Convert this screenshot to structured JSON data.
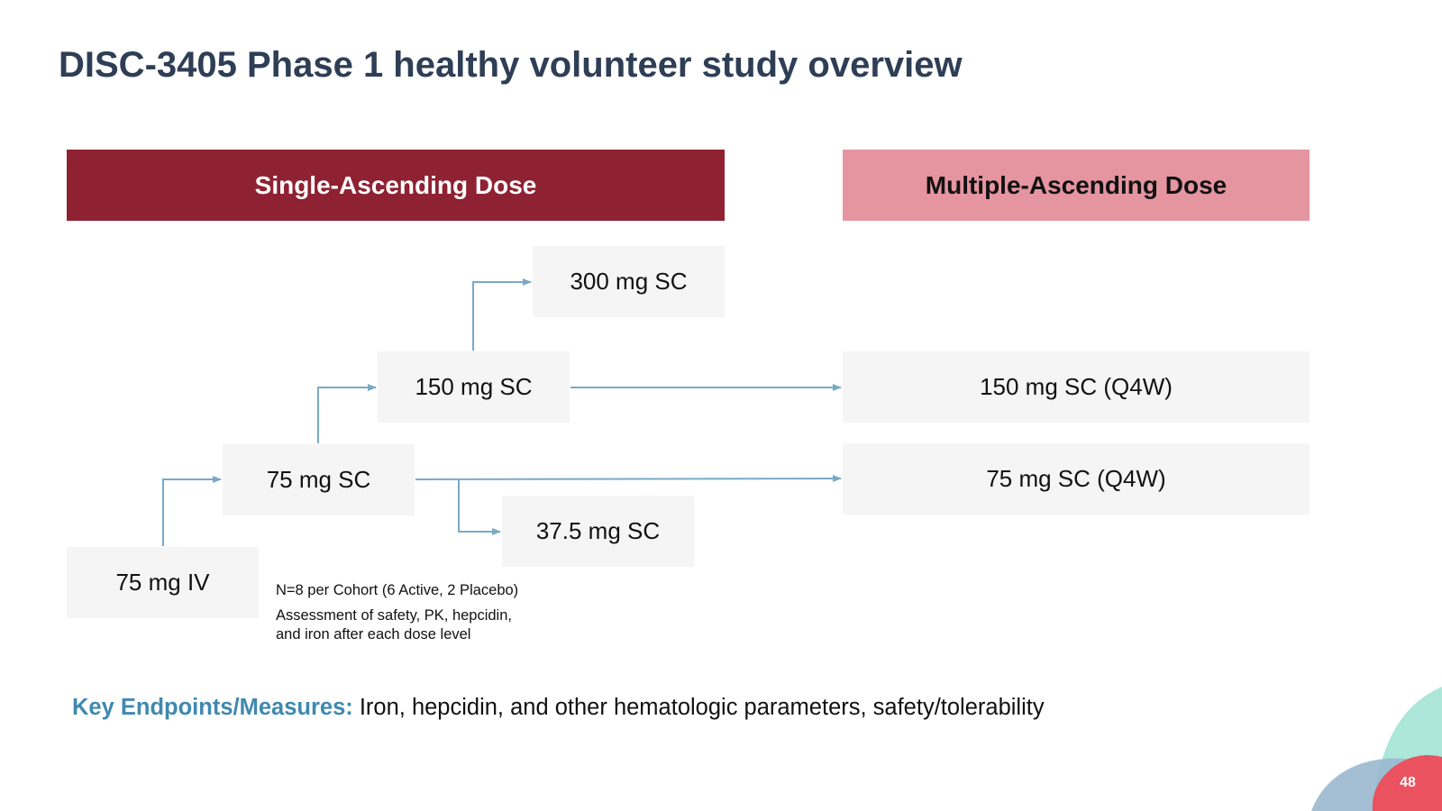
{
  "title": "DISC-3405 Phase 1 healthy volunteer study overview",
  "headers": {
    "single": "Single-Ascending Dose",
    "multiple": "Multiple-Ascending Dose"
  },
  "sad_doses": {
    "iv75": "75 mg IV",
    "sc75": "75 mg SC",
    "sc150": "150 mg SC",
    "sc300": "300 mg SC",
    "sc37_5": "37.5 mg SC"
  },
  "mad_doses": {
    "sc150_q4w": "150 mg SC (Q4W)",
    "sc75_q4w": "75 mg SC (Q4W)"
  },
  "notes": {
    "cohort": "N=8 per Cohort (6 Active, 2 Placebo)",
    "assessment_line1": "Assessment of safety, PK, hepcidin,",
    "assessment_line2": "and iron after each dose level"
  },
  "endpoints": {
    "label": "Key Endpoints/Measures:",
    "text": " Iron, hepcidin, and other hematologic parameters, safety/tolerability"
  },
  "page_number": "48",
  "colors": {
    "title": "#2e3e55",
    "sad_header": "#8e2232",
    "mad_header": "#e595a0",
    "box": "#f5f5f5",
    "arrow": "#7aa9c6",
    "endpoint_label": "#3f89b0"
  }
}
